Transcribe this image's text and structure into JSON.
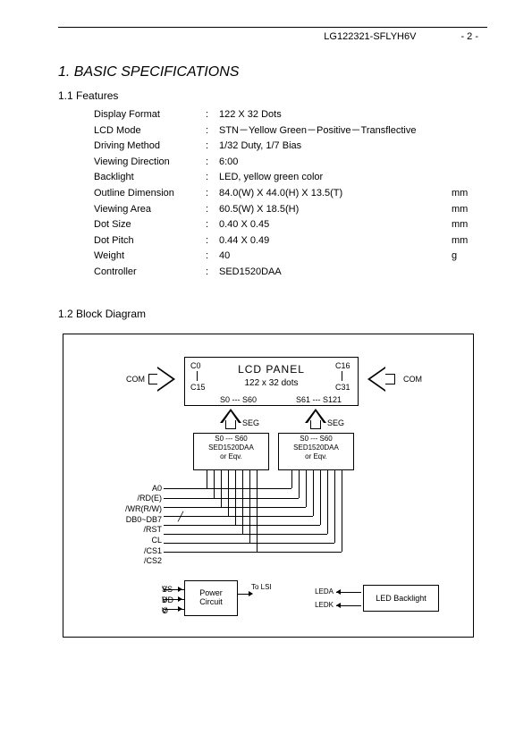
{
  "header": {
    "part_number": "LG122321-SFLYH6V",
    "page_number": "- 2 -"
  },
  "section": {
    "title": "1. BASIC SPECIFICATIONS",
    "features_label": "1.1 Features",
    "block_diagram_label": "1.2 Block Diagram"
  },
  "features": [
    {
      "label": "Display Format",
      "value": "122 X 32 Dots",
      "unit": ""
    },
    {
      "label": "LCD Mode",
      "value": "STN－Yellow Green－Positive－Transflective",
      "unit": ""
    },
    {
      "label": "Driving Method",
      "value": "1/32 Duty, 1/7 Bias",
      "unit": ""
    },
    {
      "label": "Viewing Direction",
      "value": "6:00",
      "unit": ""
    },
    {
      "label": "Backlight",
      "value": "LED, yellow green color",
      "unit": ""
    },
    {
      "label": "Outline Dimension",
      "value": "84.0(W) X 44.0(H) X 13.5(T)",
      "unit": "mm"
    },
    {
      "label": "Viewing Area",
      "value": "60.5(W) X 18.5(H)",
      "unit": "mm"
    },
    {
      "label": "Dot Size",
      "value": "0.40 X 0.45",
      "unit": "mm"
    },
    {
      "label": "Dot Pitch",
      "value": "0.44 X 0.49",
      "unit": "mm"
    },
    {
      "label": "Weight",
      "value": "40",
      "unit": "g"
    },
    {
      "label": "Controller",
      "value": "SED1520DAA",
      "unit": ""
    }
  ],
  "diagram": {
    "lcd_panel_title": "LCD  PANEL",
    "lcd_panel_sub": "122 x 32 dots",
    "c0": "C0",
    "c15": "C15",
    "c16": "C16",
    "c31": "C31",
    "s0_60": "S0 --- S60",
    "s61_121": "S61 --- S121",
    "com": "COM",
    "seg": "SEG",
    "ctrl_s": "S0 --- S60",
    "ctrl_name": "SED1520DAA",
    "ctrl_eqv": "or Eqv.",
    "signals": [
      "A0",
      "/RD(E)",
      "/WR(R/W)",
      "DB0~DB7",
      "/RST",
      "CL",
      "/CS1",
      "/CS2"
    ],
    "power_label1": "Power",
    "power_label2": "Circuit",
    "vss": "V",
    "vss_sub": "SS",
    "vdd": "V",
    "vdd_sub": "DD",
    "vo": "V",
    "vo_sub": "O",
    "to_lsi": "To LSI",
    "leda": "LEDA",
    "ledk": "LEDK",
    "led_backlight": "LED Backlight"
  },
  "colors": {
    "text": "#000000",
    "background": "#ffffff",
    "line": "#000000",
    "watermark": "#cccccc"
  }
}
